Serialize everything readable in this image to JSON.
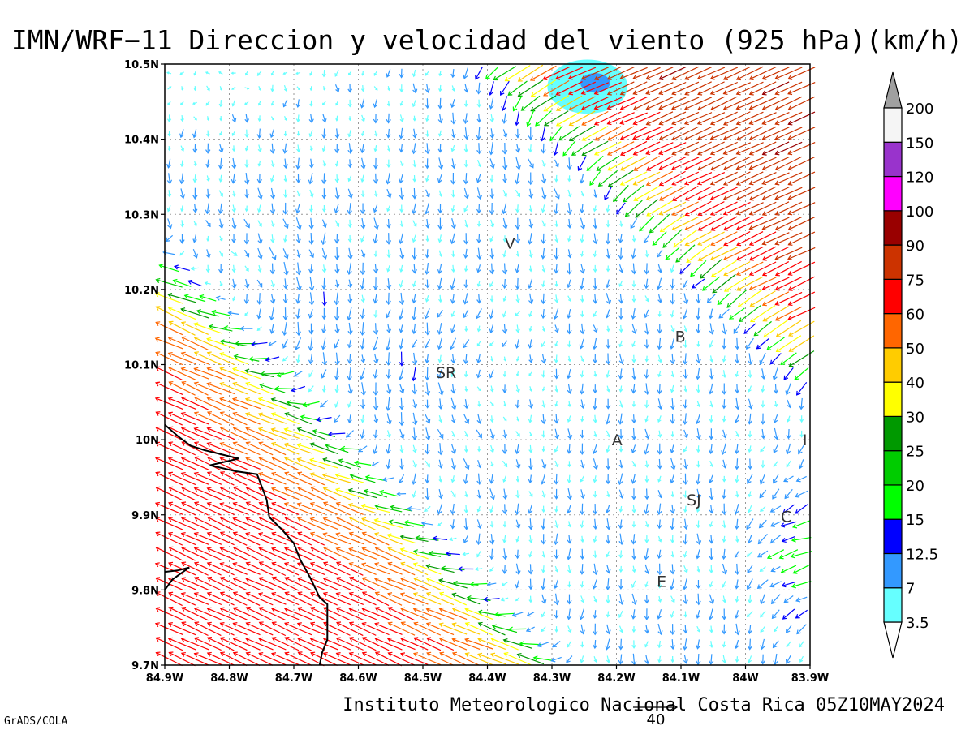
{
  "chart_data": {
    "type": "vector-field",
    "title": "IMN/WRF−11 Direccion y velocidad del viento (925 hPa)(km/h)",
    "footer": "Instituto Meteorologico Nacional Costa Rica 05Z10MAY2024",
    "credit": "GrADS/COLA",
    "reference_vector": {
      "value": 40,
      "label": "40"
    },
    "x_axis": {
      "range": [
        -84.9,
        -83.9
      ],
      "ticks": [
        {
          "value": -84.9,
          "label": "84.9W"
        },
        {
          "value": -84.8,
          "label": "84.8W"
        },
        {
          "value": -84.7,
          "label": "84.7W"
        },
        {
          "value": -84.6,
          "label": "84.6W"
        },
        {
          "value": -84.5,
          "label": "84.5W"
        },
        {
          "value": -84.4,
          "label": "84.4W"
        },
        {
          "value": -84.3,
          "label": "84.3W"
        },
        {
          "value": -84.2,
          "label": "84.2W"
        },
        {
          "value": -84.1,
          "label": "84.1W"
        },
        {
          "value": -84.0,
          "label": "84W"
        },
        {
          "value": -83.9,
          "label": "83.9W"
        }
      ]
    },
    "y_axis": {
      "range": [
        9.7,
        10.5
      ],
      "ticks": [
        {
          "value": 9.7,
          "label": "9.7N"
        },
        {
          "value": 9.8,
          "label": "9.8N"
        },
        {
          "value": 9.9,
          "label": "9.9N"
        },
        {
          "value": 10.0,
          "label": "10N"
        },
        {
          "value": 10.1,
          "label": "10.1N"
        },
        {
          "value": 10.2,
          "label": "10.2N"
        },
        {
          "value": 10.3,
          "label": "10.3N"
        },
        {
          "value": 10.4,
          "label": "10.4N"
        },
        {
          "value": 10.5,
          "label": "10.5N"
        }
      ]
    },
    "grid": true,
    "colorbar": {
      "labels": [
        "3.5",
        "7",
        "12.5",
        "15",
        "20",
        "25",
        "30",
        "40",
        "50",
        "60",
        "75",
        "90",
        "100",
        "120",
        "150",
        "200"
      ],
      "bins": [
        {
          "color": "#66ffff"
        },
        {
          "color": "#3399ff"
        },
        {
          "color": "#0000ff"
        },
        {
          "color": "#00ff00"
        },
        {
          "color": "#00cc00"
        },
        {
          "color": "#009900"
        },
        {
          "color": "#ffff00"
        },
        {
          "color": "#ffcc00"
        },
        {
          "color": "#ff6600"
        },
        {
          "color": "#ff0000"
        },
        {
          "color": "#cc3300"
        },
        {
          "color": "#990000"
        },
        {
          "color": "#ff00ff"
        },
        {
          "color": "#9933cc"
        },
        {
          "color": "#f5f5f5"
        }
      ],
      "low_arrow_color": "#ffffff",
      "high_arrow_color": "#a0a0a0"
    },
    "place_labels": [
      {
        "label": "V",
        "lon": -84.365,
        "lat": 10.262
      },
      {
        "label": "B",
        "lon": -84.101,
        "lat": 10.138
      },
      {
        "label": "SR",
        "lon": -84.464,
        "lat": 10.09
      },
      {
        "label": "A",
        "lon": -84.199,
        "lat": 10.0
      },
      {
        "label": "SJ",
        "lon": -84.08,
        "lat": 9.92
      },
      {
        "label": "C",
        "lon": -83.937,
        "lat": 9.898
      },
      {
        "label": "E",
        "lon": -84.13,
        "lat": 9.812
      },
      {
        "label": "I",
        "lon": -83.908,
        "lat": 10.0
      }
    ],
    "coastline": [
      [
        -84.9,
        10.02
      ],
      [
        -84.88,
        10.005
      ],
      [
        -84.86,
        9.992
      ],
      [
        -84.838,
        9.986
      ],
      [
        -84.81,
        9.98
      ],
      [
        -84.785,
        9.975
      ],
      [
        -84.83,
        9.966
      ],
      [
        -84.79,
        9.958
      ],
      [
        -84.757,
        9.954
      ],
      [
        -84.742,
        9.92
      ],
      [
        -84.738,
        9.897
      ],
      [
        -84.718,
        9.88
      ],
      [
        -84.7,
        9.862
      ],
      [
        -84.69,
        9.84
      ],
      [
        -84.675,
        9.817
      ],
      [
        -84.66,
        9.79
      ],
      [
        -84.648,
        9.781
      ],
      [
        -84.648,
        9.734
      ],
      [
        -84.656,
        9.717
      ],
      [
        -84.66,
        9.7
      ]
    ],
    "coastline_peninsula": [
      [
        -84.9,
        9.8
      ],
      [
        -84.888,
        9.814
      ],
      [
        -84.862,
        9.83
      ],
      [
        -84.88,
        9.826
      ],
      [
        -84.9,
        9.824
      ]
    ],
    "shaded_speed_areas": [
      {
        "bin": "3.5-7",
        "center": [
          -84.245,
          10.47
        ],
        "radius_lon": 0.062,
        "radius_lat": 0.036
      },
      {
        "bin": "7-12.5",
        "center": [
          -84.233,
          10.475
        ],
        "radius_lon": 0.023,
        "radius_lat": 0.013
      }
    ],
    "vector_field": {
      "lon_start": -84.893,
      "lon_step": 0.02,
      "lon_count": 50,
      "lat_start": 10.488,
      "lat_step": -0.02,
      "lat_count": 40,
      "units": "km/h",
      "centers": [
        {
          "lon": -84.76,
          "lat": 10.18,
          "circulation": -1,
          "strength": 1.0
        },
        {
          "lon": -84.45,
          "lat": 10.08,
          "circulation": 1,
          "strength": 1.0
        },
        {
          "lon": -84.28,
          "lat": 10.43,
          "circulation": 1,
          "strength": 0.8
        }
      ],
      "regimes": [
        {
          "name": "southwest-inflow",
          "direction_deg": 150,
          "speed": [
            35,
            70
          ]
        },
        {
          "name": "northeast-jet",
          "direction_deg": 200,
          "speed": [
            30,
            85
          ]
        },
        {
          "name": "northwest-easterlies",
          "direction_deg": 95,
          "speed": [
            8,
            22
          ]
        },
        {
          "name": "central-weak",
          "direction_deg": 270,
          "speed": [
            3,
            12
          ]
        }
      ]
    }
  }
}
